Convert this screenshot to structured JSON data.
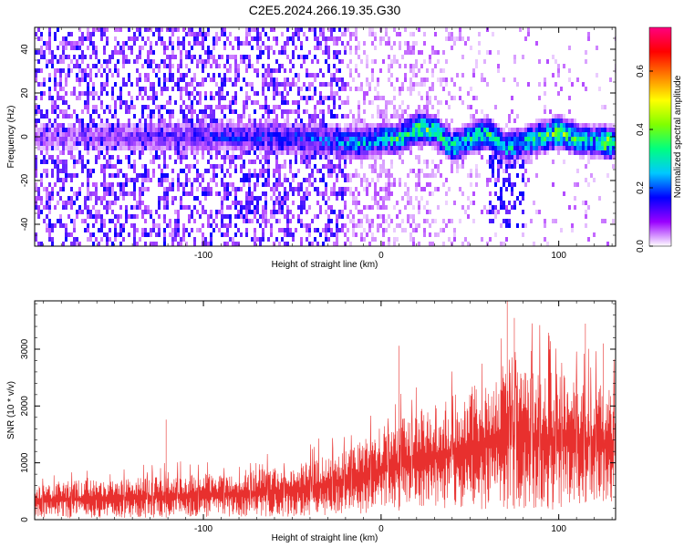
{
  "title": "C2E5.2024.266.19.35.G30",
  "chart_data": [
    {
      "type": "heatmap",
      "title": "C2E5.2024.266.19.35.G30",
      "xlabel": "Height of straight line (km)",
      "ylabel": "Frequency (Hz)",
      "xlim": [
        -195,
        132
      ],
      "ylim": [
        -50,
        50
      ],
      "x_ticks": [
        "-100",
        "0",
        "100"
      ],
      "y_ticks": [
        "-40",
        "-20",
        "0",
        "20",
        "40"
      ],
      "colorbar": {
        "label": "Normalized spectral amplitude",
        "range": [
          0.0,
          0.75
        ],
        "ticks": [
          "0.0",
          "0.2",
          "0.4",
          "0.6"
        ],
        "colors": [
          "#ffffff",
          "#9a00ff",
          "#0000ff",
          "#00c8ff",
          "#00ff80",
          "#80ff00",
          "#ffff00",
          "#ff8000",
          "#ff0000",
          "#ff0080"
        ]
      },
      "signal_band": {
        "center_freq_hz": [
          [
            -195,
            0
          ],
          [
            -60,
            0
          ],
          [
            -30,
            -2
          ],
          [
            -10,
            -3
          ],
          [
            0,
            -1
          ],
          [
            10,
            -1
          ],
          [
            20,
            4
          ],
          [
            30,
            3
          ],
          [
            40,
            -5
          ],
          [
            50,
            -1
          ],
          [
            60,
            2
          ],
          [
            70,
            -5
          ],
          [
            80,
            -3
          ],
          [
            90,
            0
          ],
          [
            100,
            2
          ],
          [
            110,
            -1
          ],
          [
            120,
            -2
          ],
          [
            132,
            -3
          ]
        ],
        "peak_amplitude": [
          [
            -195,
            0.08
          ],
          [
            -60,
            0.2
          ],
          [
            -40,
            0.2
          ],
          [
            -20,
            0.25
          ],
          [
            0,
            0.3
          ],
          [
            10,
            0.35
          ],
          [
            20,
            0.4
          ],
          [
            40,
            0.35
          ],
          [
            60,
            0.35
          ],
          [
            80,
            0.3
          ],
          [
            95,
            0.4
          ],
          [
            100,
            0.45
          ],
          [
            110,
            0.35
          ],
          [
            122,
            0.3
          ],
          [
            127,
            0.5
          ],
          [
            132,
            0.35
          ]
        ]
      },
      "background_noise": "dense purple speckle at low amplitude (≈0.05–0.15) for heights below about -20 km, fading to sparse light speckle above"
    },
    {
      "type": "line",
      "xlabel": "Height of straight line (km)",
      "ylabel": "SNR (10 * v/v)",
      "xlim": [
        -195,
        132
      ],
      "ylim": [
        0,
        3850
      ],
      "x_ticks": [
        "-100",
        "0",
        "100"
      ],
      "y_ticks": [
        "0",
        "1000",
        "2000",
        "3000"
      ],
      "series": [
        {
          "color": "#e8302e",
          "envelope": {
            "x": [
              -195,
              -150,
              -100,
              -50,
              -20,
              0,
              20,
              40,
              60,
              80,
              100,
              120,
              132
            ],
            "lower": [
              20,
              30,
              40,
              50,
              80,
              120,
              200,
              200,
              180,
              200,
              160,
              350,
              300
            ],
            "upper": [
              700,
              750,
              850,
              1000,
              1300,
              1700,
              2000,
              2300,
              2600,
              2800,
              2700,
              2500,
              2400
            ]
          },
          "peaks": [
            {
              "x": -121,
              "y": 1760
            },
            {
              "x": 10,
              "y": 3060
            },
            {
              "x": 71,
              "y": 3850
            },
            {
              "x": 75,
              "y": 3550
            },
            {
              "x": 115,
              "y": 3450
            },
            {
              "x": 125,
              "y": 3100
            }
          ]
        }
      ]
    }
  ]
}
